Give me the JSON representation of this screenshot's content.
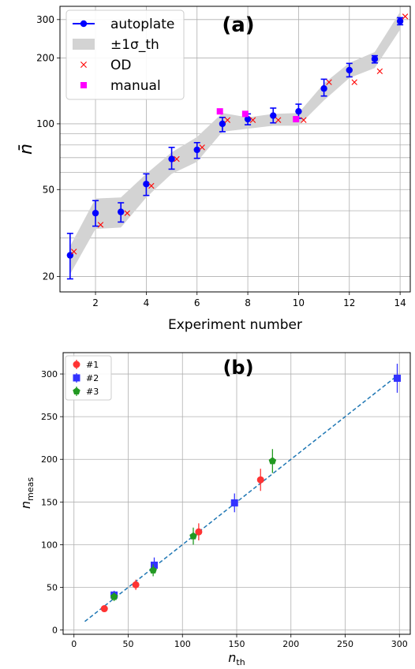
{
  "chart_data": [
    {
      "type": "scatter",
      "panel_label": "(a)",
      "xlabel": "Experiment number",
      "ylabel": "n̄",
      "yscale": "log",
      "xlim": [
        0.6,
        14.4
      ],
      "ylim": [
        17,
        345
      ],
      "xticks": [
        2,
        4,
        6,
        8,
        10,
        12,
        14
      ],
      "yticks": [
        20,
        50,
        100,
        200,
        300
      ],
      "grid": true,
      "legend": {
        "placement": "upper-left",
        "entries": [
          {
            "label": "autoplate",
            "marker": "circle-errorbar",
            "color": "#0000ff"
          },
          {
            "label": "±1σ_th",
            "marker": "band",
            "color": "#d3d3d3"
          },
          {
            "label": "OD",
            "marker": "x",
            "color": "#ff0000"
          },
          {
            "label": "manual",
            "marker": "square",
            "color": "#ff00ff"
          }
        ]
      },
      "band": {
        "name": "±1σ_th",
        "x": [
          1,
          2,
          3,
          4,
          5,
          6,
          7,
          8,
          9,
          10,
          11,
          12,
          13,
          14
        ],
        "lower": [
          20.5,
          33,
          33.5,
          46,
          59,
          67,
          92,
          95,
          98,
          98,
          128,
          162,
          180,
          270
        ],
        "upper": [
          27.5,
          45.5,
          46,
          59,
          74,
          87,
          112,
          107,
          111,
          112,
          153,
          190,
          213,
          325
        ]
      },
      "series": [
        {
          "name": "autoplate",
          "color": "#0000ff",
          "x": [
            1,
            2,
            3,
            4,
            5,
            6,
            7,
            8,
            9,
            10,
            11,
            12,
            13,
            14
          ],
          "y": [
            25,
            39,
            39.5,
            53,
            69,
            76,
            100,
            105,
            109,
            114,
            145,
            176,
            198,
            295
          ],
          "yerr_low": [
            19.5,
            34,
            35.5,
            47,
            62,
            69.5,
            92,
            99,
            101,
            106,
            134,
            164,
            190,
            284
          ],
          "yerr_high": [
            31.5,
            44.5,
            43.5,
            59,
            78,
            82,
            107,
            111,
            118,
            123,
            160,
            189,
            205,
            306
          ]
        },
        {
          "name": "OD",
          "color": "#ff0000",
          "x": [
            1.15,
            2.2,
            3.25,
            4.2,
            5.2,
            6.2,
            7.2,
            8.2,
            9.2,
            10.2,
            11.2,
            12.2,
            13.2,
            14.2
          ],
          "y": [
            26,
            34.5,
            39,
            52,
            69,
            78,
            104,
            104,
            104,
            104,
            155,
            155,
            174,
            310
          ]
        },
        {
          "name": "manual",
          "color": "#ff00ff",
          "x": [
            6.9,
            7.9,
            9.9
          ],
          "y": [
            114,
            111,
            105
          ]
        }
      ]
    },
    {
      "type": "scatter",
      "panel_label": "(b)",
      "xlabel": "n_th",
      "ylabel": "n_meas",
      "xlim": [
        -10,
        310
      ],
      "ylim": [
        -5,
        325
      ],
      "xticks": [
        0,
        50,
        100,
        150,
        200,
        250,
        300
      ],
      "yticks": [
        0,
        50,
        100,
        150,
        200,
        250,
        300
      ],
      "grid": true,
      "legend": {
        "placement": "upper-left",
        "entries": [
          {
            "label": "#1",
            "marker": "circle",
            "color": "#ff3333"
          },
          {
            "label": "#2",
            "marker": "square",
            "color": "#3333ff"
          },
          {
            "label": "#3",
            "marker": "pentagon",
            "color": "#229922"
          }
        ]
      },
      "fit_line": {
        "style": "dashed",
        "color": "#1f77b4",
        "x": [
          10,
          298
        ],
        "y": [
          10,
          298
        ]
      },
      "series": [
        {
          "name": "#1",
          "color": "#ff3333",
          "marker": "circle",
          "x": [
            28,
            57,
            115,
            172
          ],
          "y": [
            25,
            53,
            115,
            176
          ],
          "yerr": [
            3,
            6,
            10,
            13
          ]
        },
        {
          "name": "#2",
          "color": "#3333ff",
          "marker": "square",
          "x": [
            37,
            74,
            148,
            298
          ],
          "y": [
            41,
            76,
            149,
            295
          ],
          "yerr": [
            5,
            9,
            11,
            17
          ]
        },
        {
          "name": "#3",
          "color": "#229922",
          "marker": "pentagon",
          "x": [
            37,
            73,
            110,
            183
          ],
          "y": [
            39,
            70,
            110,
            198
          ],
          "yerr": [
            5,
            7,
            10,
            14
          ]
        }
      ]
    }
  ]
}
